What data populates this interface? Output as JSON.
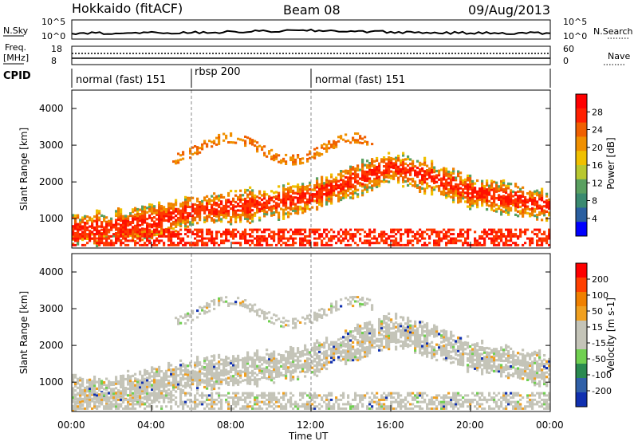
{
  "header": {
    "station": "Hokkaido (fitACF)",
    "beam": "Beam 08",
    "date": "09/Aug/2013"
  },
  "side_labels": {
    "nsky": "N.Sky",
    "freq_line1": "Freq.",
    "freq_line2": "[MHz]",
    "cpid": "CPID",
    "nsearch": "N.Search",
    "nave": "Nave"
  },
  "small_axes": {
    "nsky_ticks": [
      "10^5",
      "10^0"
    ],
    "freq_ticks": [
      "18",
      "8"
    ],
    "nsearch_ticks": [
      "10^5",
      "10^0"
    ],
    "nave_ticks": [
      "60",
      "0"
    ]
  },
  "cpid_segments": [
    {
      "label": "normal (fast) 151",
      "start_hour": 0
    },
    {
      "label": "rbsp 200",
      "start_hour": 6
    },
    {
      "label": "normal (fast) 151",
      "start_hour": 12
    }
  ],
  "colors": {
    "power_scale": [
      "#0000ff",
      "#2a5fa0",
      "#3a8a70",
      "#5aa060",
      "#b8c830",
      "#f0c000",
      "#f09000",
      "#f06000",
      "#ff2000",
      "#ff0000"
    ],
    "velocity_scale": [
      "#1030b0",
      "#3060a8",
      "#2a8a50",
      "#70d050",
      "#c4c4b8",
      "#c4c4b8",
      "#f0a020",
      "#f08000",
      "#ff4000",
      "#ff0000"
    ]
  },
  "chart_data": [
    {
      "type": "heatmap",
      "panel": "power",
      "ylabel": "Slant Range [km]",
      "yticks": [
        "1000",
        "2000",
        "3000",
        "4000"
      ],
      "ylim": [
        200,
        4500
      ],
      "xlabel": "Time UT",
      "xticks": [
        "00:00",
        "04:00",
        "08:00",
        "12:00",
        "16:00",
        "20:00",
        "00:00"
      ],
      "xlim": [
        0,
        24
      ],
      "colorbar_label": "Power [dB]",
      "colorbar_ticks": [
        "28",
        "24",
        "20",
        "16",
        "12",
        "8",
        "4"
      ],
      "colorbar_range": [
        0,
        32
      ],
      "approx_echo_band_center_km": {
        "hours": [
          0,
          2,
          4,
          6,
          8,
          10,
          12,
          14,
          16,
          18,
          20,
          22,
          24
        ],
        "range_km": [
          700,
          750,
          900,
          1200,
          1300,
          1400,
          1600,
          2000,
          2400,
          2100,
          1700,
          1500,
          1300
        ]
      }
    },
    {
      "type": "heatmap",
      "panel": "velocity",
      "ylabel": "Slant Range [km]",
      "yticks": [
        "1000",
        "2000",
        "3000",
        "4000"
      ],
      "ylim": [
        200,
        4500
      ],
      "xlabel": "Time UT",
      "xticks": [
        "00:00",
        "04:00",
        "08:00",
        "12:00",
        "16:00",
        "20:00",
        "00:00"
      ],
      "xlim": [
        0,
        24
      ],
      "colorbar_label": "Velocity [m s-1]",
      "colorbar_ticks": [
        "200",
        "100",
        "50",
        "15",
        "-15",
        "-50",
        "-100",
        "-200"
      ],
      "colorbar_range": [
        -250,
        250
      ]
    }
  ],
  "xaxis_title": "Time UT"
}
